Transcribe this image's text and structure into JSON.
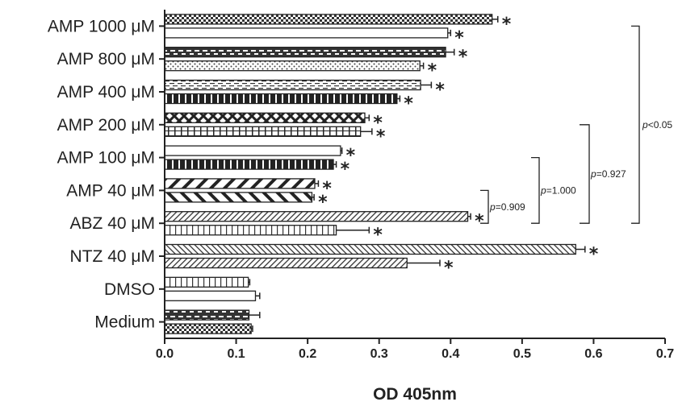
{
  "chart_data": {
    "type": "bar",
    "orientation": "horizontal",
    "xlabel": "OD 405nm",
    "xlim": [
      0,
      0.7
    ],
    "xticks": [
      "0.0",
      "0.1",
      "0.2",
      "0.3",
      "0.4",
      "0.5",
      "0.6",
      "0.7"
    ],
    "grid": false,
    "legend": "none",
    "categories": [
      "AMP 1000 μM",
      "AMP 800 μM",
      "AMP 400 μM",
      "AMP 200 μM",
      "AMP 100 μM",
      "AMP 40 μM",
      "ABZ 40 μM",
      "NTZ 40 μM",
      "DMSO",
      "Medium"
    ],
    "bars": [
      {
        "category": "AMP 1000 μM",
        "pattern": "checker",
        "value": 0.458,
        "error": 0.008,
        "significant": true
      },
      {
        "category": "AMP 1000 μM",
        "pattern": "blank",
        "value": 0.396,
        "error": 0.004,
        "significant": true
      },
      {
        "category": "AMP 800 μM",
        "pattern": "dark-dash",
        "value": 0.393,
        "error": 0.012,
        "significant": true
      },
      {
        "category": "AMP 800 μM",
        "pattern": "dots",
        "value": 0.357,
        "error": 0.005,
        "significant": true
      },
      {
        "category": "AMP 400 μM",
        "pattern": "light-dash",
        "value": 0.358,
        "error": 0.015,
        "significant": true
      },
      {
        "category": "AMP 400 μM",
        "pattern": "dark-vertical",
        "value": 0.325,
        "error": 0.004,
        "significant": true
      },
      {
        "category": "AMP 200 μM",
        "pattern": "cross",
        "value": 0.28,
        "error": 0.006,
        "significant": true
      },
      {
        "category": "AMP 200 μM",
        "pattern": "grid",
        "value": 0.274,
        "error": 0.016,
        "significant": true
      },
      {
        "category": "AMP 100 μM",
        "pattern": "blank",
        "value": 0.246,
        "error": 0.002,
        "significant": true
      },
      {
        "category": "AMP 100 μM",
        "pattern": "dark-vertical",
        "value": 0.236,
        "error": 0.004,
        "significant": true
      },
      {
        "category": "AMP 40 μM",
        "pattern": "diag-right",
        "value": 0.21,
        "error": 0.005,
        "significant": true
      },
      {
        "category": "AMP 40 μM",
        "pattern": "diag-left",
        "value": 0.206,
        "error": 0.003,
        "significant": true
      },
      {
        "category": "ABZ 40 μM",
        "pattern": "diag-right-fine",
        "value": 0.424,
        "error": 0.004,
        "significant": true
      },
      {
        "category": "ABZ 40 μM",
        "pattern": "light-vertical",
        "value": 0.24,
        "error": 0.046,
        "significant": true
      },
      {
        "category": "NTZ 40 μM",
        "pattern": "diag-left-fine",
        "value": 0.575,
        "error": 0.013,
        "significant": true
      },
      {
        "category": "NTZ 40 μM",
        "pattern": "diag-right-fine",
        "value": 0.339,
        "error": 0.046,
        "significant": true
      },
      {
        "category": "DMSO",
        "pattern": "light-vertical",
        "value": 0.117,
        "error": 0.002,
        "significant": false
      },
      {
        "category": "DMSO",
        "pattern": "blank",
        "value": 0.127,
        "error": 0.006,
        "significant": false
      },
      {
        "category": "Medium",
        "pattern": "dark-dash",
        "value": 0.118,
        "error": 0.015,
        "significant": false
      },
      {
        "category": "Medium",
        "pattern": "checker",
        "value": 0.121,
        "error": 0.002,
        "significant": false
      }
    ],
    "significance_marker": "*",
    "comparisons": [
      {
        "label_italic": "p",
        "label_rest": "=0.909",
        "from": "ABZ 40 μM",
        "to": "AMP 40 μM"
      },
      {
        "label_italic": "p",
        "label_rest": "=1.000",
        "from": "ABZ 40 μM",
        "to": "AMP 100 μM"
      },
      {
        "label_italic": "p",
        "label_rest": "=0.927",
        "from": "ABZ 40 μM",
        "to": "AMP 200 μM"
      },
      {
        "label_italic": "p",
        "label_rest": "<0.05",
        "from": "ABZ 40 μM",
        "to": "AMP 1000 μM"
      }
    ]
  }
}
